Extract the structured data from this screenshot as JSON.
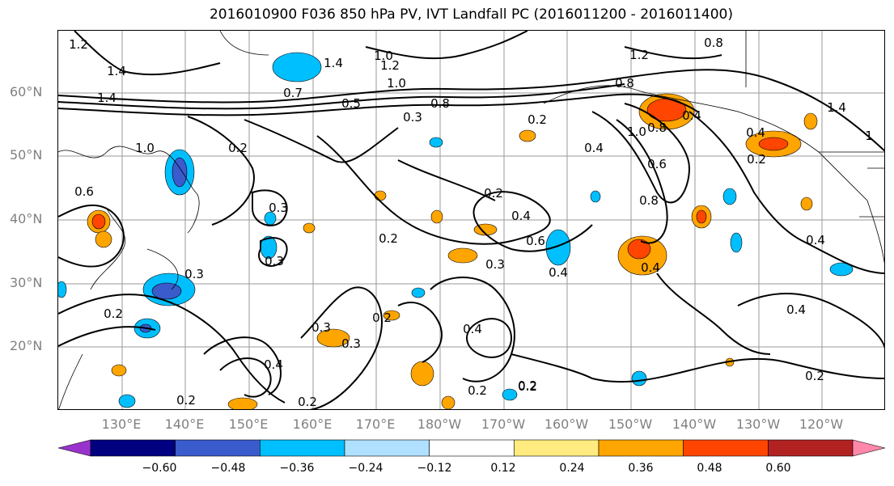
{
  "title": "2016010900 F036 850 hPa PV, IVT Landfall PC (2016011200 - 2016011400)",
  "lat_labels": [
    "60°N",
    "50°N",
    "40°N",
    "30°N",
    "20°N"
  ],
  "lon_labels": [
    "130°E",
    "140°E",
    "150°E",
    "160°E",
    "170°E",
    "180°W",
    "170°W",
    "160°W",
    "150°W",
    "140°W",
    "130°W",
    "120°W"
  ],
  "colorbar": {
    "ticks": [
      "−0.60",
      "−0.48",
      "−0.36",
      "−0.24",
      "−0.12",
      "0.12",
      "0.24",
      "0.36",
      "0.48",
      "0.60"
    ],
    "colors": [
      "#9932cc",
      "#000080",
      "#3a5bcc",
      "#00bfff",
      "#b0e0ff",
      "#ffffff",
      "#ffeb80",
      "#ffa500",
      "#ff4500",
      "#b22222",
      "#ff88aa"
    ]
  },
  "contour_labels": [
    "1.2",
    "1.4",
    "1.4",
    "1.0",
    "1.2",
    "1.4",
    "0.8",
    "1.2",
    "1.0",
    "0.8",
    "0.7",
    "0.5",
    "0.3",
    "1.0",
    "0.2",
    "0.6",
    "0.3",
    "0.3",
    "0.2",
    "0.4",
    "0.6",
    "0.2",
    "0.3",
    "0.3",
    "0.2",
    "0.4",
    "0.2",
    "0.3",
    "0.4",
    "0.2",
    "0.3",
    "0.2",
    "0.4",
    "0.2",
    "0.2",
    "0.4",
    "1.0",
    "0.8",
    "0.8",
    "0.4",
    "0.6",
    "0.8",
    "0.4",
    "0.4",
    "0.2",
    "1.4",
    "1",
    "0.2",
    "0.2",
    "0.4",
    "0.4",
    "0.2"
  ]
}
